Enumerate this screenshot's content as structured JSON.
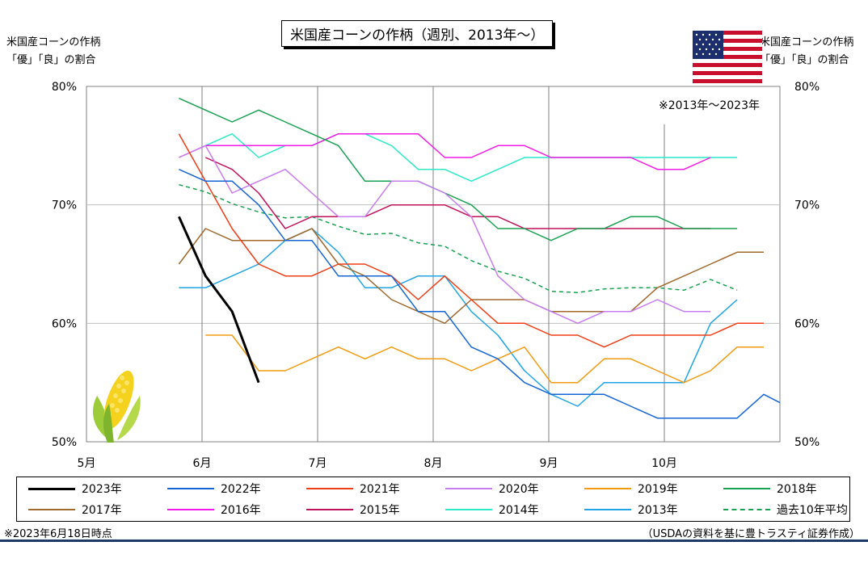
{
  "title": "米国産コーンの作柄（週別、2013年～）",
  "y_axis_left_title": [
    "米国産コーンの作柄",
    "「優」「良」の割合"
  ],
  "y_axis_right_title": [
    "米国産コーンの作柄",
    "「優」「良」の割合"
  ],
  "note_top_right": "※2013年～2023年",
  "footnote_left": "※2023年6月18日時点",
  "footnote_right": "（USDAの資料を基に豊トラスティ証券作成）",
  "icons": {
    "flag": "us-flag-icon",
    "corn": "corn-icon"
  },
  "colors": {
    "rule": "#1f3864"
  },
  "chart_data": {
    "type": "line",
    "ylim": [
      50,
      80
    ],
    "yticks": [
      "80%",
      "70%",
      "60%",
      "50%"
    ],
    "yticks_right": [
      "80%",
      "70%",
      "60%",
      "50%"
    ],
    "months": [
      "5月",
      "6月",
      "7月",
      "8月",
      "9月",
      "10月"
    ],
    "month_values": [
      5,
      6,
      7,
      8,
      9,
      10
    ],
    "xlim": [
      5,
      11
    ],
    "grid": true,
    "series": [
      {
        "name": "2023年",
        "color": "#000000",
        "width": 3,
        "dash": false,
        "x": [
          5.8,
          6.03,
          6.26,
          6.49
        ],
        "y": [
          69,
          64,
          61,
          55
        ]
      },
      {
        "name": "2022年",
        "color": "#1565d6",
        "width": 1.5,
        "dash": false,
        "x": [
          5.8,
          6.03,
          6.26,
          6.49,
          6.72,
          6.95,
          7.18,
          7.41,
          7.64,
          7.87,
          8.1,
          8.33,
          8.56,
          8.79,
          9.02,
          9.25,
          9.48,
          9.71,
          9.94,
          10.17,
          10.4,
          10.63,
          10.86,
          11.0
        ],
        "y": [
          73,
          72,
          72,
          70,
          67,
          67,
          64,
          64,
          64,
          61,
          61,
          58,
          57,
          55,
          54,
          54,
          54,
          53,
          52,
          52,
          52,
          52,
          54,
          53.3
        ]
      },
      {
        "name": "2021年",
        "color": "#ef3d14",
        "width": 1.5,
        "dash": false,
        "x": [
          5.8,
          6.03,
          6.26,
          6.49,
          6.72,
          6.95,
          7.18,
          7.41,
          7.64,
          7.87,
          8.1,
          8.33,
          8.56,
          8.79,
          9.02,
          9.25,
          9.48,
          9.71,
          9.94,
          10.17,
          10.4,
          10.63,
          10.86
        ],
        "y": [
          76,
          72,
          68,
          65,
          64,
          64,
          65,
          65,
          64,
          62,
          64,
          62,
          60,
          60,
          59,
          59,
          58,
          59,
          59,
          59,
          59,
          60,
          60
        ]
      },
      {
        "name": "2020年",
        "color": "#c77cf0",
        "width": 1.5,
        "dash": false,
        "x": [
          5.8,
          6.03,
          6.26,
          6.49,
          6.72,
          6.95,
          7.18,
          7.41,
          7.64,
          7.87,
          8.1,
          8.33,
          8.56,
          8.79,
          9.02,
          9.25,
          9.48,
          9.71,
          9.94,
          10.17,
          10.4
        ],
        "y": [
          74,
          75,
          71,
          72,
          73,
          71,
          69,
          69,
          72,
          72,
          71,
          69,
          64,
          62,
          61,
          60,
          61,
          61,
          62,
          61,
          61
        ]
      },
      {
        "name": "2019年",
        "color": "#f29b12",
        "width": 1.5,
        "dash": false,
        "x": [
          6.03,
          6.26,
          6.49,
          6.72,
          6.95,
          7.18,
          7.41,
          7.64,
          7.87,
          8.1,
          8.33,
          8.56,
          8.79,
          9.02,
          9.25,
          9.48,
          9.71,
          9.94,
          10.17,
          10.4,
          10.63,
          10.86
        ],
        "y": [
          59,
          59,
          56,
          56,
          57,
          58,
          57,
          58,
          57,
          57,
          56,
          57,
          58,
          55,
          55,
          57,
          57,
          56,
          55,
          56,
          58,
          58
        ]
      },
      {
        "name": "2018年",
        "color": "#18a150",
        "width": 1.5,
        "dash": false,
        "x": [
          5.8,
          6.03,
          6.26,
          6.49,
          6.72,
          6.95,
          7.18,
          7.41,
          7.64,
          7.87,
          8.1,
          8.33,
          8.56,
          8.79,
          9.02,
          9.25,
          9.48,
          9.71,
          9.94,
          10.17,
          10.4,
          10.63
        ],
        "y": [
          79,
          78,
          77,
          78,
          77,
          76,
          75,
          72,
          72,
          72,
          71,
          70,
          68,
          68,
          67,
          68,
          68,
          69,
          69,
          68,
          68,
          68
        ]
      },
      {
        "name": "2017年",
        "color": "#a0692e",
        "width": 1.5,
        "dash": false,
        "x": [
          5.8,
          6.03,
          6.26,
          6.49,
          6.72,
          6.95,
          7.18,
          7.41,
          7.64,
          7.87,
          8.1,
          8.33,
          8.56,
          8.79,
          9.02,
          9.25,
          9.48,
          9.71,
          9.94,
          10.17,
          10.4,
          10.63,
          10.86
        ],
        "y": [
          65,
          68,
          67,
          67,
          67,
          68,
          65,
          64,
          62,
          61,
          60,
          62,
          62,
          62,
          61,
          61,
          61,
          61,
          63,
          64,
          65,
          66,
          66
        ]
      },
      {
        "name": "2016年",
        "color": "#f21ae8",
        "width": 1.5,
        "dash": false,
        "x": [
          5.8,
          6.03,
          6.26,
          6.49,
          6.72,
          6.95,
          7.18,
          7.41,
          7.64,
          7.87,
          8.1,
          8.33,
          8.56,
          8.79,
          9.02,
          9.25,
          9.48,
          9.71,
          9.94,
          10.17,
          10.4
        ],
        "y": [
          74,
          75,
          75,
          75,
          75,
          75,
          76,
          76,
          76,
          76,
          74,
          74,
          75,
          75,
          74,
          74,
          74,
          74,
          73,
          73,
          74
        ]
      },
      {
        "name": "2015年",
        "color": "#c0125c",
        "width": 1.5,
        "dash": false,
        "x": [
          6.03,
          6.26,
          6.49,
          6.72,
          6.95,
          7.18,
          7.41,
          7.64,
          7.87,
          8.1,
          8.33,
          8.56,
          8.79,
          9.02,
          9.25,
          9.48,
          9.71,
          9.94,
          10.17,
          10.4
        ],
        "y": [
          74,
          73,
          71,
          68,
          69,
          69,
          69,
          70,
          70,
          70,
          69,
          69,
          68,
          68,
          68,
          68,
          68,
          68,
          68,
          68
        ]
      },
      {
        "name": "2014年",
        "color": "#2de8c8",
        "width": 1.5,
        "dash": false,
        "x": [
          6.03,
          6.26,
          6.49,
          6.72,
          6.95,
          7.18,
          7.41,
          7.64,
          7.87,
          8.1,
          8.33,
          8.56,
          8.79,
          9.02,
          9.25,
          9.48,
          9.71,
          9.94,
          10.17,
          10.4,
          10.63
        ],
        "y": [
          75,
          76,
          74,
          75,
          75,
          76,
          76,
          75,
          73,
          73,
          72,
          73,
          74,
          74,
          74,
          74,
          74,
          74,
          74,
          74,
          74
        ]
      },
      {
        "name": "2013年",
        "color": "#21a4e6",
        "width": 1.5,
        "dash": false,
        "x": [
          5.8,
          6.03,
          6.26,
          6.49,
          6.72,
          6.95,
          7.18,
          7.41,
          7.64,
          7.87,
          8.1,
          8.33,
          8.56,
          8.79,
          9.02,
          9.25,
          9.48,
          9.71,
          9.94,
          10.17,
          10.4,
          10.63
        ],
        "y": [
          63,
          63,
          64,
          65,
          67,
          68,
          66,
          63,
          63,
          64,
          64,
          61,
          59,
          56,
          54,
          53,
          55,
          55,
          55,
          55,
          60,
          62
        ]
      },
      {
        "name": "過去10年平均",
        "color": "#18a150",
        "width": 1.5,
        "dash": true,
        "x": [
          5.8,
          6.03,
          6.26,
          6.49,
          6.72,
          6.95,
          7.18,
          7.41,
          7.64,
          7.87,
          8.1,
          8.33,
          8.56,
          8.79,
          9.02,
          9.25,
          9.48,
          9.71,
          9.94,
          10.17,
          10.4,
          10.63
        ],
        "y": [
          71.7,
          71.1,
          70.1,
          69.4,
          68.9,
          69.0,
          68.2,
          67.5,
          67.6,
          66.8,
          66.5,
          65.3,
          64.4,
          63.8,
          62.7,
          62.6,
          62.9,
          63.0,
          63.0,
          62.8,
          63.7,
          62.8
        ]
      }
    ]
  }
}
